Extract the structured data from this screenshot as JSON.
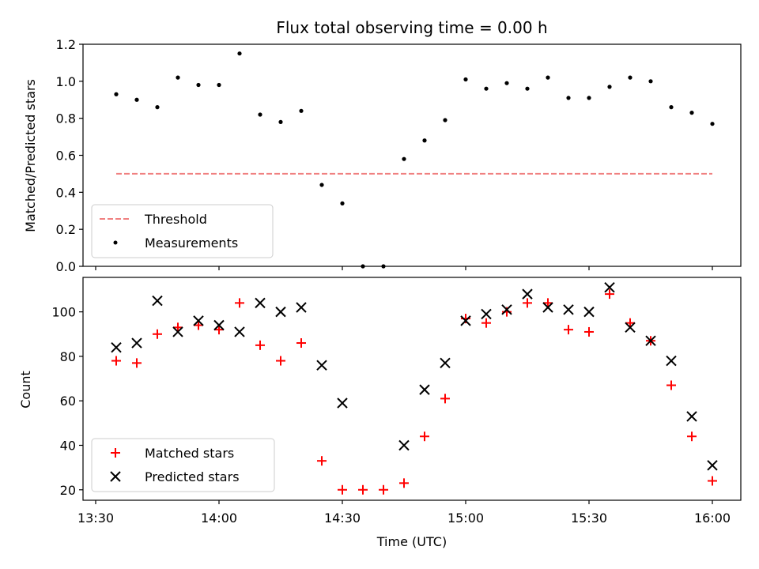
{
  "chart_data": [
    {
      "type": "scatter",
      "title": "Flux total observing time = 0.00 h",
      "xlabel": "",
      "ylabel": "Matched/Predicted stars",
      "xlim": [
        "13:30",
        "16:00"
      ],
      "ylim": [
        0,
        1.2
      ],
      "yticks": [
        0.0,
        0.2,
        0.4,
        0.6,
        0.8,
        1.0,
        1.2
      ],
      "ytick_labels": [
        "0.0",
        "0.2",
        "0.4",
        "0.6",
        "0.8",
        "1.0",
        "1.2"
      ],
      "legend": {
        "placement": "lower-left",
        "entries": [
          "Threshold",
          "Measurements"
        ]
      },
      "series": [
        {
          "name": "Threshold",
          "style": "dashed-line",
          "color": "#f08080",
          "x": [
            "13:35",
            "16:00"
          ],
          "y": [
            0.5,
            0.5
          ]
        },
        {
          "name": "Measurements",
          "style": "dot",
          "color": "#000000",
          "x": [
            "13:35",
            "13:40",
            "13:45",
            "13:50",
            "13:55",
            "14:00",
            "14:05",
            "14:10",
            "14:15",
            "14:20",
            "14:25",
            "14:30",
            "14:35",
            "14:40",
            "14:45",
            "14:50",
            "14:55",
            "15:00",
            "15:05",
            "15:10",
            "15:15",
            "15:20",
            "15:25",
            "15:30",
            "15:35",
            "15:40",
            "15:45",
            "15:50",
            "15:55",
            "16:00"
          ],
          "y": [
            0.93,
            0.9,
            0.86,
            1.02,
            0.98,
            0.98,
            1.15,
            0.82,
            0.78,
            0.84,
            0.44,
            0.34,
            0.0,
            0.0,
            0.58,
            0.68,
            0.79,
            1.01,
            0.96,
            0.99,
            0.96,
            1.02,
            0.91,
            0.91,
            0.97,
            1.02,
            1.0,
            0.86,
            0.83,
            0.77
          ]
        }
      ]
    },
    {
      "type": "scatter",
      "title": "",
      "xlabel": "Time (UTC)",
      "ylabel": "Count",
      "xlim": [
        "13:30",
        "16:00"
      ],
      "xticks": [
        "13:30",
        "14:00",
        "14:30",
        "15:00",
        "15:30",
        "16:00"
      ],
      "ylim": [
        15.3,
        115.5
      ],
      "yticks": [
        20,
        40,
        60,
        80,
        100
      ],
      "ytick_labels": [
        "20",
        "40",
        "60",
        "80",
        "100"
      ],
      "legend": {
        "placement": "lower-left",
        "entries": [
          "Matched stars",
          "Predicted stars"
        ]
      },
      "series": [
        {
          "name": "Matched stars",
          "marker": "plus",
          "color": "#ff0000",
          "x": [
            "13:35",
            "13:40",
            "13:45",
            "13:50",
            "13:55",
            "14:00",
            "14:05",
            "14:10",
            "14:15",
            "14:20",
            "14:25",
            "14:30",
            "14:35",
            "14:40",
            "14:45",
            "14:50",
            "14:55",
            "15:00",
            "15:05",
            "15:10",
            "15:15",
            "15:20",
            "15:25",
            "15:30",
            "15:35",
            "15:40",
            "15:45",
            "15:50",
            "15:55",
            "16:00"
          ],
          "y": [
            78,
            77,
            90,
            93,
            94,
            92,
            104,
            85,
            78,
            86,
            33,
            20,
            20,
            20,
            23,
            44,
            61,
            97,
            95,
            100,
            104,
            104,
            92,
            91,
            108,
            95,
            87,
            67,
            44,
            24
          ]
        },
        {
          "name": "Predicted stars",
          "marker": "x",
          "color": "#000000",
          "x": [
            "13:35",
            "13:40",
            "13:45",
            "13:50",
            "13:55",
            "14:00",
            "14:05",
            "14:10",
            "14:15",
            "14:20",
            "14:25",
            "14:30",
            "14:45",
            "14:50",
            "14:55",
            "15:00",
            "15:05",
            "15:10",
            "15:15",
            "15:20",
            "15:25",
            "15:30",
            "15:35",
            "15:40",
            "15:45",
            "15:50",
            "15:55",
            "16:00"
          ],
          "y": [
            84,
            86,
            105,
            91,
            96,
            94,
            91,
            104,
            100,
            102,
            76,
            59,
            40,
            65,
            77,
            96,
            99,
            101,
            108,
            102,
            101,
            100,
            111,
            93,
            87,
            78,
            53,
            31
          ]
        }
      ]
    }
  ]
}
